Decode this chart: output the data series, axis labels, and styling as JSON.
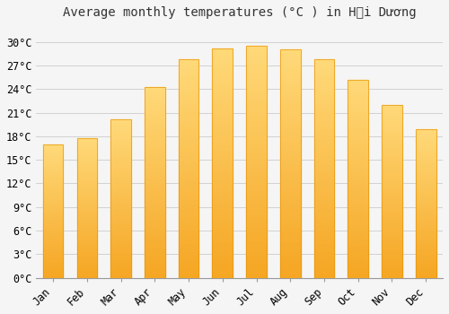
{
  "title": "Average monthly temperatures (°C ) in Hải Dương",
  "months": [
    "Jan",
    "Feb",
    "Mar",
    "Apr",
    "May",
    "Jun",
    "Jul",
    "Aug",
    "Sep",
    "Oct",
    "Nov",
    "Dec"
  ],
  "values": [
    17.0,
    17.8,
    20.2,
    24.3,
    27.8,
    29.1,
    29.5,
    29.0,
    27.8,
    25.2,
    22.0,
    18.9
  ],
  "bar_color_bottom": "#F5A623",
  "bar_color_top": "#FFD97A",
  "bar_edge_color": "#E8960A",
  "background_color": "#f5f5f5",
  "grid_color": "#cccccc",
  "yticks": [
    0,
    3,
    6,
    9,
    12,
    15,
    18,
    21,
    24,
    27,
    30
  ],
  "ylim": [
    0,
    32
  ],
  "title_fontsize": 10,
  "tick_fontsize": 8.5,
  "bar_width": 0.6
}
